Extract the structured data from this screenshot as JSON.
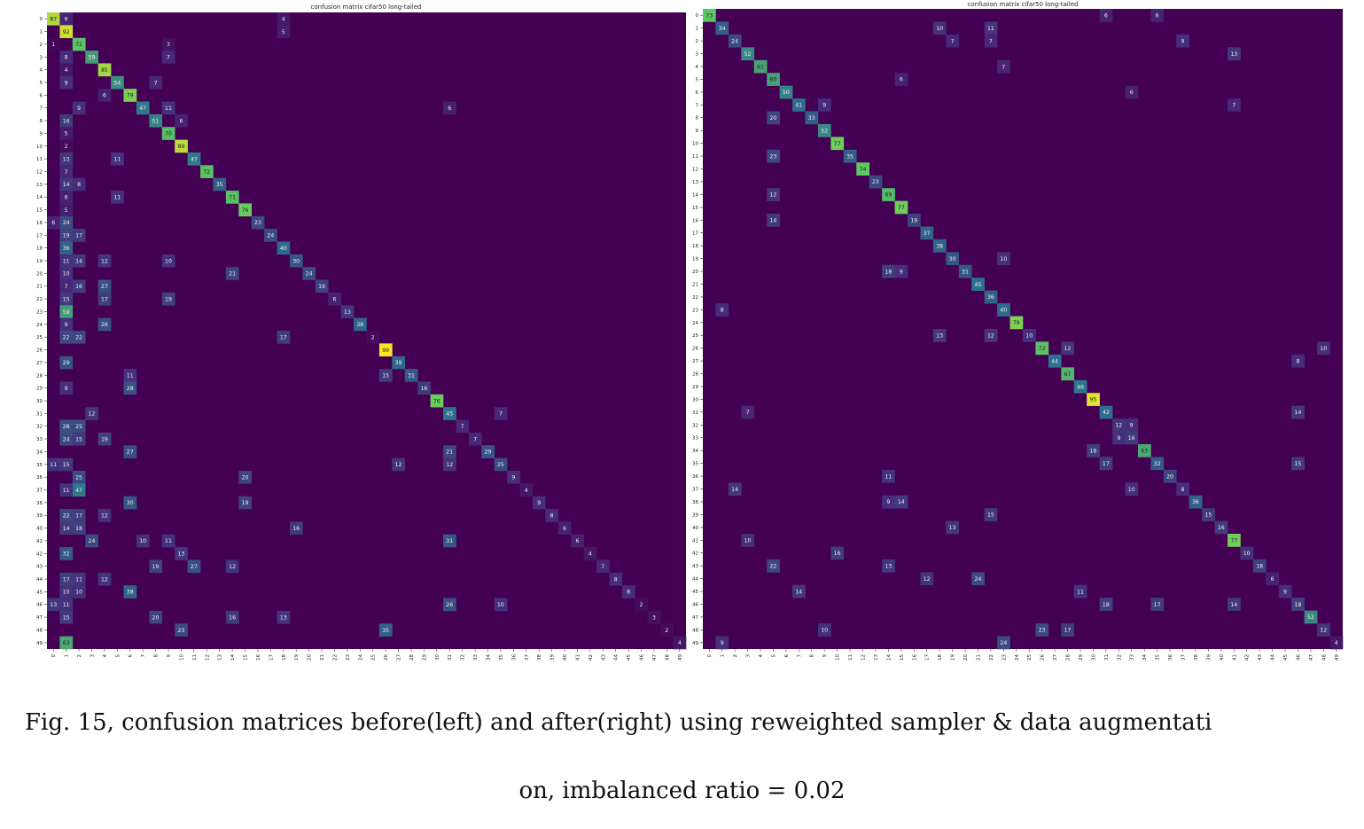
{
  "charts": [
    {
      "title": "confusion matrix cifar50 long-tailed"
    },
    {
      "title": "confusion matrix cifar50 long-tailed"
    }
  ],
  "caption": {
    "line1": "Fig. 15, confusion matrices before(left) and after(right) using reweighted sampler & data augmentati",
    "line2": "on, imbalanced ratio = 0.02"
  },
  "colors": {
    "background": "#440154",
    "low": "#472c7a",
    "mid": "#2c728e",
    "high": "#5ec962",
    "peak": "#fde725",
    "caption_text": "#111111"
  },
  "chart_data": [
    {
      "type": "heatmap",
      "title": "confusion matrix cifar50 long-tailed",
      "n_classes": 50,
      "x_ticks": [
        "0",
        "1",
        "2",
        "3",
        "4",
        "5",
        "6",
        "7",
        "8",
        "9",
        "10",
        "11",
        "12",
        "13",
        "14",
        "15",
        "16",
        "17",
        "18",
        "19",
        "20",
        "21",
        "22",
        "23",
        "24",
        "25",
        "26",
        "27",
        "28",
        "29",
        "30",
        "31",
        "32",
        "33",
        "34",
        "35",
        "36",
        "37",
        "38",
        "39",
        "40",
        "41",
        "42",
        "43",
        "44",
        "45",
        "46",
        "47",
        "48",
        "49"
      ],
      "y_ticks": [
        "0",
        "1",
        "2",
        "3",
        "4",
        "5",
        "6",
        "7",
        "8",
        "9",
        "10",
        "11",
        "12",
        "13",
        "14",
        "15",
        "16",
        "17",
        "18",
        "19",
        "20",
        "21",
        "22",
        "23",
        "24",
        "25",
        "26",
        "27",
        "28",
        "29",
        "30",
        "31",
        "32",
        "33",
        "34",
        "35",
        "36",
        "37",
        "38",
        "39",
        "40",
        "41",
        "42",
        "43",
        "44",
        "45",
        "46",
        "47",
        "48",
        "49"
      ],
      "vmax": 99,
      "cells": [
        [
          0,
          0,
          87
        ],
        [
          0,
          1,
          6
        ],
        [
          0,
          18,
          4
        ],
        [
          1,
          1,
          92
        ],
        [
          1,
          18,
          5
        ],
        [
          2,
          2,
          72
        ],
        [
          2,
          0,
          1
        ],
        [
          2,
          9,
          3
        ],
        [
          3,
          3,
          59
        ],
        [
          3,
          1,
          8
        ],
        [
          3,
          9,
          7
        ],
        [
          4,
          4,
          85
        ],
        [
          4,
          1,
          4
        ],
        [
          5,
          5,
          54
        ],
        [
          5,
          1,
          9
        ],
        [
          5,
          8,
          7
        ],
        [
          6,
          6,
          79
        ],
        [
          6,
          4,
          6
        ],
        [
          7,
          7,
          47
        ],
        [
          7,
          2,
          9
        ],
        [
          7,
          9,
          11
        ],
        [
          7,
          31,
          6
        ],
        [
          8,
          8,
          51
        ],
        [
          8,
          1,
          16
        ],
        [
          8,
          10,
          6
        ],
        [
          9,
          9,
          70
        ],
        [
          9,
          1,
          5
        ],
        [
          10,
          10,
          89
        ],
        [
          10,
          1,
          2
        ],
        [
          11,
          11,
          47
        ],
        [
          11,
          1,
          13
        ],
        [
          11,
          5,
          11
        ],
        [
          12,
          12,
          72
        ],
        [
          12,
          1,
          7
        ],
        [
          13,
          13,
          35
        ],
        [
          13,
          1,
          14
        ],
        [
          13,
          2,
          8
        ],
        [
          14,
          14,
          71
        ],
        [
          14,
          1,
          6
        ],
        [
          14,
          5,
          11
        ],
        [
          15,
          15,
          76
        ],
        [
          15,
          1,
          5
        ],
        [
          16,
          16,
          23
        ],
        [
          16,
          1,
          24
        ],
        [
          16,
          0,
          6
        ],
        [
          17,
          17,
          24
        ],
        [
          17,
          1,
          19
        ],
        [
          17,
          2,
          17
        ],
        [
          18,
          18,
          40
        ],
        [
          18,
          1,
          36
        ],
        [
          19,
          19,
          30
        ],
        [
          19,
          1,
          11
        ],
        [
          19,
          2,
          14
        ],
        [
          19,
          4,
          12
        ],
        [
          19,
          9,
          10
        ],
        [
          20,
          20,
          24
        ],
        [
          20,
          1,
          10
        ],
        [
          20,
          14,
          21
        ],
        [
          21,
          21,
          19
        ],
        [
          21,
          1,
          7
        ],
        [
          21,
          2,
          16
        ],
        [
          21,
          4,
          27
        ],
        [
          22,
          22,
          6
        ],
        [
          22,
          1,
          15
        ],
        [
          22,
          4,
          17
        ],
        [
          22,
          9,
          19
        ],
        [
          23,
          23,
          13
        ],
        [
          23,
          1,
          59
        ],
        [
          24,
          24,
          38
        ],
        [
          24,
          1,
          9
        ],
        [
          24,
          4,
          26
        ],
        [
          25,
          25,
          2
        ],
        [
          25,
          1,
          22
        ],
        [
          25,
          2,
          22
        ],
        [
          25,
          18,
          17
        ],
        [
          26,
          26,
          99
        ],
        [
          27,
          27,
          39
        ],
        [
          27,
          1,
          29
        ],
        [
          28,
          28,
          31
        ],
        [
          28,
          26,
          15
        ],
        [
          28,
          6,
          11
        ],
        [
          29,
          29,
          16
        ],
        [
          29,
          6,
          28
        ],
        [
          29,
          1,
          9
        ],
        [
          30,
          30,
          76
        ],
        [
          31,
          31,
          45
        ],
        [
          31,
          3,
          12
        ],
        [
          31,
          35,
          7
        ],
        [
          32,
          32,
          7
        ],
        [
          32,
          1,
          28
        ],
        [
          32,
          2,
          25
        ],
        [
          33,
          33,
          7
        ],
        [
          33,
          1,
          24
        ],
        [
          33,
          2,
          15
        ],
        [
          33,
          4,
          19
        ],
        [
          34,
          34,
          29
        ],
        [
          34,
          6,
          27
        ],
        [
          34,
          31,
          21
        ],
        [
          35,
          35,
          25
        ],
        [
          35,
          0,
          11
        ],
        [
          35,
          1,
          15
        ],
        [
          35,
          27,
          12
        ],
        [
          35,
          31,
          12
        ],
        [
          36,
          36,
          9
        ],
        [
          36,
          2,
          25
        ],
        [
          36,
          15,
          20
        ],
        [
          37,
          37,
          4
        ],
        [
          37,
          2,
          47
        ],
        [
          37,
          1,
          11
        ],
        [
          38,
          38,
          9
        ],
        [
          38,
          6,
          30
        ],
        [
          38,
          15,
          19
        ],
        [
          39,
          39,
          8
        ],
        [
          39,
          1,
          22
        ],
        [
          39,
          2,
          17
        ],
        [
          39,
          4,
          12
        ],
        [
          40,
          40,
          6
        ],
        [
          40,
          1,
          14
        ],
        [
          40,
          2,
          18
        ],
        [
          40,
          19,
          16
        ],
        [
          41,
          41,
          6
        ],
        [
          41,
          3,
          24
        ],
        [
          41,
          7,
          10
        ],
        [
          41,
          9,
          11
        ],
        [
          41,
          31,
          31
        ],
        [
          42,
          42,
          4
        ],
        [
          42,
          1,
          32
        ],
        [
          42,
          10,
          13
        ],
        [
          43,
          43,
          7
        ],
        [
          43,
          8,
          19
        ],
        [
          43,
          11,
          27
        ],
        [
          43,
          14,
          12
        ],
        [
          44,
          44,
          8
        ],
        [
          44,
          1,
          17
        ],
        [
          44,
          2,
          11
        ],
        [
          44,
          4,
          12
        ],
        [
          45,
          45,
          8
        ],
        [
          45,
          1,
          10
        ],
        [
          45,
          2,
          10
        ],
        [
          45,
          6,
          38
        ],
        [
          46,
          46,
          2
        ],
        [
          46,
          0,
          13
        ],
        [
          46,
          1,
          11
        ],
        [
          46,
          31,
          26
        ],
        [
          46,
          35,
          10
        ],
        [
          47,
          47,
          3
        ],
        [
          47,
          1,
          15
        ],
        [
          47,
          8,
          20
        ],
        [
          47,
          14,
          16
        ],
        [
          47,
          18,
          13
        ],
        [
          48,
          48,
          2
        ],
        [
          48,
          10,
          23
        ],
        [
          48,
          26,
          35
        ],
        [
          49,
          49,
          4
        ],
        [
          49,
          1,
          63
        ]
      ]
    },
    {
      "type": "heatmap",
      "title": "confusion matrix cifar50 long-tailed",
      "n_classes": 50,
      "x_ticks": [
        "0",
        "1",
        "2",
        "3",
        "4",
        "5",
        "6",
        "7",
        "8",
        "9",
        "10",
        "11",
        "12",
        "13",
        "14",
        "15",
        "16",
        "17",
        "18",
        "19",
        "20",
        "21",
        "22",
        "23",
        "24",
        "25",
        "26",
        "27",
        "28",
        "29",
        "30",
        "31",
        "32",
        "33",
        "34",
        "35",
        "36",
        "37",
        "38",
        "39",
        "40",
        "41",
        "42",
        "43",
        "44",
        "45",
        "46",
        "47",
        "48",
        "49"
      ],
      "y_ticks": [
        "0",
        "1",
        "2",
        "3",
        "4",
        "5",
        "6",
        "7",
        "8",
        "9",
        "10",
        "11",
        "12",
        "13",
        "14",
        "15",
        "16",
        "17",
        "18",
        "19",
        "20",
        "21",
        "22",
        "23",
        "24",
        "25",
        "26",
        "27",
        "28",
        "29",
        "30",
        "31",
        "32",
        "33",
        "34",
        "35",
        "36",
        "37",
        "38",
        "39",
        "40",
        "41",
        "42",
        "43",
        "44",
        "45",
        "46",
        "47",
        "48",
        "49"
      ],
      "vmax": 99,
      "cells": [
        [
          0,
          0,
          73
        ],
        [
          0,
          31,
          6
        ],
        [
          0,
          35,
          6
        ],
        [
          1,
          1,
          34
        ],
        [
          1,
          18,
          10
        ],
        [
          1,
          22,
          11
        ],
        [
          2,
          2,
          24
        ],
        [
          2,
          19,
          7
        ],
        [
          2,
          22,
          7
        ],
        [
          2,
          37,
          9
        ],
        [
          3,
          3,
          52
        ],
        [
          3,
          41,
          13
        ],
        [
          4,
          4,
          61
        ],
        [
          4,
          23,
          7
        ],
        [
          5,
          5,
          60
        ],
        [
          5,
          15,
          6
        ],
        [
          6,
          6,
          50
        ],
        [
          6,
          33,
          6
        ],
        [
          7,
          7,
          41
        ],
        [
          7,
          9,
          9
        ],
        [
          7,
          41,
          7
        ],
        [
          8,
          8,
          33
        ],
        [
          8,
          5,
          20
        ],
        [
          9,
          9,
          52
        ],
        [
          10,
          10,
          77
        ],
        [
          11,
          11,
          35
        ],
        [
          11,
          5,
          23
        ],
        [
          12,
          12,
          74
        ],
        [
          13,
          13,
          23
        ],
        [
          14,
          14,
          69
        ],
        [
          14,
          5,
          12
        ],
        [
          15,
          15,
          77
        ],
        [
          16,
          16,
          19
        ],
        [
          16,
          5,
          14
        ],
        [
          17,
          17,
          37
        ],
        [
          18,
          18,
          38
        ],
        [
          19,
          19,
          30
        ],
        [
          19,
          23,
          10
        ],
        [
          20,
          20,
          31
        ],
        [
          20,
          14,
          18
        ],
        [
          20,
          15,
          9
        ],
        [
          21,
          21,
          45
        ],
        [
          22,
          22,
          36
        ],
        [
          23,
          23,
          40
        ],
        [
          23,
          1,
          8
        ],
        [
          24,
          24,
          79
        ],
        [
          25,
          25,
          10
        ],
        [
          25,
          18,
          13
        ],
        [
          25,
          22,
          12
        ],
        [
          26,
          26,
          72
        ],
        [
          26,
          28,
          12
        ],
        [
          26,
          48,
          10
        ],
        [
          27,
          27,
          44
        ],
        [
          27,
          46,
          8
        ],
        [
          28,
          28,
          67
        ],
        [
          29,
          29,
          46
        ],
        [
          30,
          30,
          95
        ],
        [
          31,
          31,
          42
        ],
        [
          31,
          3,
          7
        ],
        [
          31,
          46,
          14
        ],
        [
          32,
          32,
          12
        ],
        [
          32,
          33,
          9
        ],
        [
          33,
          33,
          16
        ],
        [
          33,
          32,
          9
        ],
        [
          34,
          34,
          63
        ],
        [
          34,
          30,
          18
        ],
        [
          35,
          35,
          32
        ],
        [
          35,
          31,
          17
        ],
        [
          35,
          46,
          15
        ],
        [
          36,
          36,
          20
        ],
        [
          36,
          14,
          11
        ],
        [
          37,
          37,
          8
        ],
        [
          37,
          2,
          14
        ],
        [
          37,
          33,
          10
        ],
        [
          38,
          38,
          36
        ],
        [
          38,
          14,
          9
        ],
        [
          38,
          15,
          14
        ],
        [
          39,
          39,
          15
        ],
        [
          39,
          22,
          15
        ],
        [
          40,
          40,
          16
        ],
        [
          40,
          19,
          13
        ],
        [
          41,
          41,
          77
        ],
        [
          41,
          3,
          10
        ],
        [
          42,
          42,
          10
        ],
        [
          42,
          10,
          16
        ],
        [
          43,
          43,
          18
        ],
        [
          43,
          5,
          22
        ],
        [
          43,
          14,
          13
        ],
        [
          44,
          44,
          6
        ],
        [
          44,
          17,
          12
        ],
        [
          44,
          21,
          24
        ],
        [
          45,
          45,
          9
        ],
        [
          45,
          7,
          14
        ],
        [
          45,
          29,
          11
        ],
        [
          46,
          46,
          18
        ],
        [
          46,
          31,
          18
        ],
        [
          46,
          35,
          17
        ],
        [
          46,
          41,
          14
        ],
        [
          47,
          47,
          52
        ],
        [
          48,
          48,
          12
        ],
        [
          48,
          9,
          10
        ],
        [
          48,
          26,
          23
        ],
        [
          48,
          28,
          17
        ],
        [
          49,
          49,
          4
        ],
        [
          49,
          1,
          9
        ],
        [
          49,
          23,
          24
        ]
      ]
    }
  ]
}
